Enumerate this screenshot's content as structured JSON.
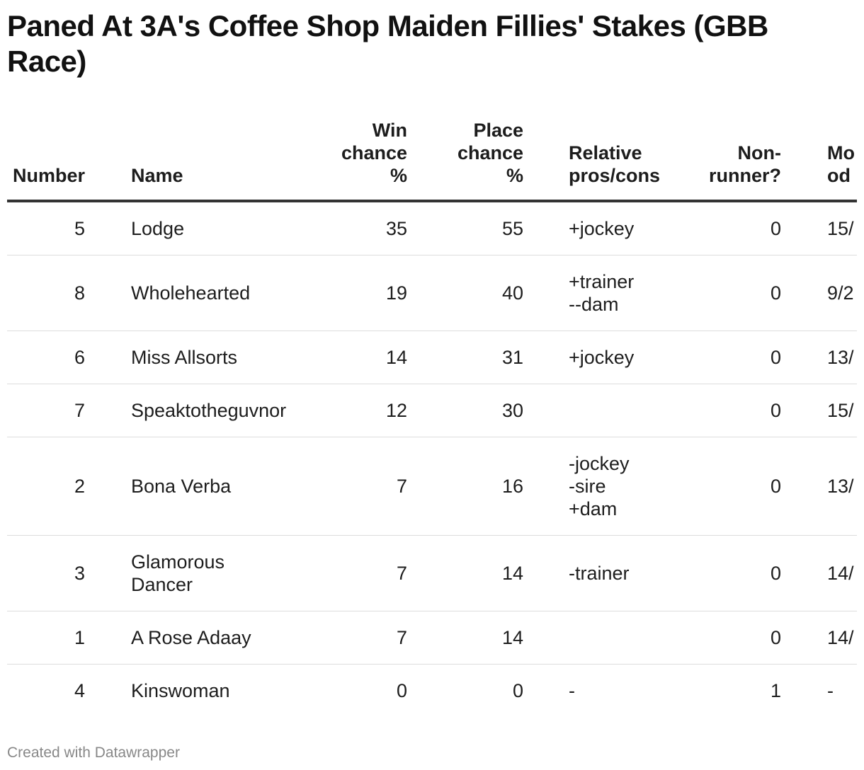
{
  "title": "Paned At 3A's Coffee Shop Maiden Fillies' Stakes (GBB Race)",
  "footer": "Created with Datawrapper",
  "chart_data": {
    "type": "table",
    "title": "Paned At 3A's Coffee Shop Maiden Fillies' Stakes (GBB Race)",
    "columns": [
      {
        "key": "number",
        "label": [
          "Number"
        ]
      },
      {
        "key": "name",
        "label": [
          "Name"
        ]
      },
      {
        "key": "win",
        "label": [
          "Win",
          "chance",
          "%"
        ]
      },
      {
        "key": "place",
        "label": [
          "Place",
          "chance",
          "%"
        ]
      },
      {
        "key": "rel",
        "label": [
          "Relative",
          "pros/cons"
        ]
      },
      {
        "key": "nonrunner",
        "label": [
          "Non-",
          "runner?"
        ]
      },
      {
        "key": "odds",
        "label": [
          "Mo",
          "od"
        ]
      }
    ],
    "rows": [
      {
        "number": "5",
        "name": [
          "Lodge"
        ],
        "win": "35",
        "place": "55",
        "rel": [
          "+jockey"
        ],
        "nonrunner": "0",
        "odds": "15/"
      },
      {
        "number": "8",
        "name": [
          "Wholehearted"
        ],
        "win": "19",
        "place": "40",
        "rel": [
          "+trainer",
          "--dam"
        ],
        "nonrunner": "0",
        "odds": "9/2"
      },
      {
        "number": "6",
        "name": [
          "Miss Allsorts"
        ],
        "win": "14",
        "place": "31",
        "rel": [
          "+jockey"
        ],
        "nonrunner": "0",
        "odds": "13/"
      },
      {
        "number": "7",
        "name": [
          "Speaktotheguvnor"
        ],
        "win": "12",
        "place": "30",
        "rel": [],
        "nonrunner": "0",
        "odds": "15/"
      },
      {
        "number": "2",
        "name": [
          "Bona Verba"
        ],
        "win": "7",
        "place": "16",
        "rel": [
          "-jockey",
          "-sire",
          "+dam"
        ],
        "nonrunner": "0",
        "odds": "13/"
      },
      {
        "number": "3",
        "name": [
          "Glamorous",
          "Dancer"
        ],
        "win": "7",
        "place": "14",
        "rel": [
          "-trainer"
        ],
        "nonrunner": "0",
        "odds": "14/"
      },
      {
        "number": "1",
        "name": [
          "A Rose Adaay"
        ],
        "win": "7",
        "place": "14",
        "rel": [],
        "nonrunner": "0",
        "odds": "14/"
      },
      {
        "number": "4",
        "name": [
          "Kinswoman"
        ],
        "win": "0",
        "place": "0",
        "rel": [
          "-"
        ],
        "nonrunner": "1",
        "odds": "-"
      }
    ]
  }
}
